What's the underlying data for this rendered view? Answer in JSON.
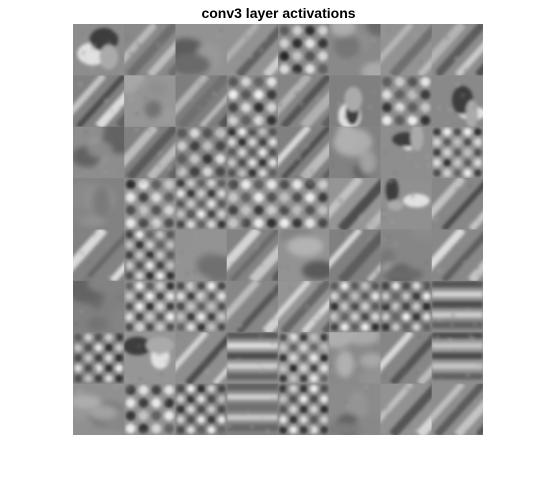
{
  "figure": {
    "title": "conv3 layer activations"
  },
  "montage": {
    "rows": 8,
    "cols": 8,
    "colormap": "gray",
    "base_gray": "#8a8a8a",
    "tile_types": [
      [
        "blob",
        "diag",
        "soft",
        "diag",
        "grid",
        "soft",
        "diag",
        "diag"
      ],
      [
        "diag",
        "soft",
        "diag",
        "grid",
        "diag",
        "blob",
        "grid",
        "blob"
      ],
      [
        "soft",
        "diag",
        "grid",
        "grid",
        "diag",
        "soft",
        "blob",
        "grid"
      ],
      [
        "soft",
        "grid",
        "grid",
        "grid",
        "grid",
        "diag",
        "blob",
        "diag"
      ],
      [
        "diag",
        "grid",
        "soft",
        "diag",
        "soft",
        "diag",
        "soft",
        "diag"
      ],
      [
        "soft",
        "grid",
        "grid",
        "diag",
        "diag",
        "grid",
        "grid",
        "stripe"
      ],
      [
        "grid",
        "blob",
        "diag",
        "stripe",
        "grid",
        "soft",
        "diag",
        "stripe"
      ],
      [
        "soft",
        "grid",
        "grid",
        "stripe",
        "grid",
        "soft",
        "diag",
        "diag"
      ]
    ]
  }
}
